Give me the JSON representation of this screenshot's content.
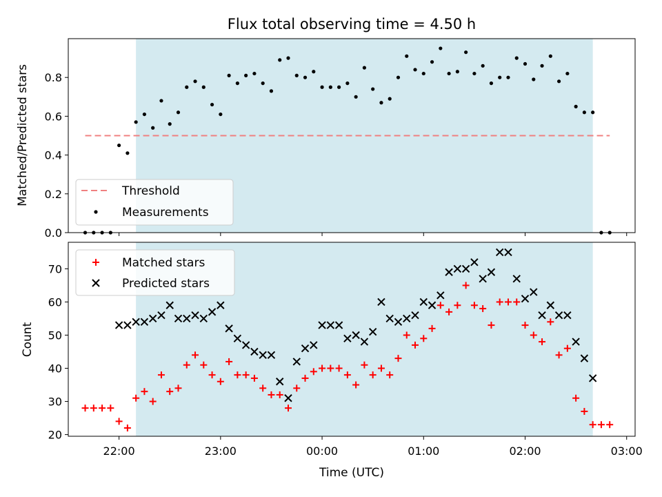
{
  "colors": {
    "background": "#ffffff",
    "shade": "#d4eaf0",
    "threshold": "#f08080",
    "measurement": "#000000",
    "matched": "#ff0000",
    "predicted": "#000000",
    "axis": "#000000"
  },
  "chart_data": [
    {
      "type": "scatter",
      "title": "Flux total observing time = 4.50 h",
      "xlabel": "",
      "ylabel": "Matched/Predicted stars",
      "xlim": [
        "21:30",
        "03:05"
      ],
      "ylim": [
        0,
        1.0
      ],
      "yticks": [
        "0.0",
        "0.2",
        "0.4",
        "0.6",
        "0.8"
      ],
      "ytick_values": [
        0,
        0.2,
        0.4,
        0.6,
        0.8
      ],
      "shaded_span": [
        "22:10",
        "02:40"
      ],
      "legend_position": "lower-left",
      "threshold": {
        "label": "Threshold",
        "value": 0.5,
        "x_range": [
          "21:40",
          "02:50"
        ]
      },
      "series": [
        {
          "name": "Measurements",
          "marker": "dot",
          "x": [
            "21:40",
            "21:45",
            "21:50",
            "21:55",
            "22:00",
            "22:05",
            "22:10",
            "22:15",
            "22:20",
            "22:25",
            "22:30",
            "22:35",
            "22:40",
            "22:45",
            "22:50",
            "22:55",
            "23:00",
            "23:05",
            "23:10",
            "23:15",
            "23:20",
            "23:25",
            "23:30",
            "23:35",
            "23:40",
            "23:45",
            "23:50",
            "23:55",
            "00:00",
            "00:05",
            "00:10",
            "00:15",
            "00:20",
            "00:25",
            "00:30",
            "00:35",
            "00:40",
            "00:45",
            "00:50",
            "00:55",
            "01:00",
            "01:05",
            "01:10",
            "01:15",
            "01:20",
            "01:25",
            "01:30",
            "01:35",
            "01:40",
            "01:45",
            "01:50",
            "01:55",
            "02:00",
            "02:05",
            "02:10",
            "02:15",
            "02:20",
            "02:25",
            "02:30",
            "02:35",
            "02:40",
            "02:45",
            "02:50"
          ],
          "y": [
            0,
            0,
            0,
            0,
            0.45,
            0.41,
            0.57,
            0.61,
            0.54,
            0.68,
            0.56,
            0.62,
            0.75,
            0.78,
            0.75,
            0.66,
            0.61,
            0.81,
            0.77,
            0.81,
            0.82,
            0.77,
            0.73,
            0.89,
            0.9,
            0.81,
            0.8,
            0.83,
            0.75,
            0.75,
            0.75,
            0.77,
            0.7,
            0.85,
            0.74,
            0.67,
            0.69,
            0.8,
            0.91,
            0.84,
            0.82,
            0.88,
            0.95,
            0.82,
            0.83,
            0.93,
            0.82,
            0.86,
            0.77,
            0.8,
            0.8,
            0.9,
            0.87,
            0.79,
            0.86,
            0.91,
            0.78,
            0.82,
            0.65,
            0.62,
            0.62,
            0,
            0
          ]
        }
      ]
    },
    {
      "type": "scatter",
      "title": "",
      "xlabel": "Time (UTC)",
      "ylabel": "Count",
      "xlim": [
        "21:30",
        "03:05"
      ],
      "ylim": [
        19.5,
        78
      ],
      "yticks": [
        "20",
        "30",
        "40",
        "50",
        "60",
        "70"
      ],
      "ytick_values": [
        20,
        30,
        40,
        50,
        60,
        70
      ],
      "xticks": [
        "22:00",
        "23:00",
        "00:00",
        "01:00",
        "02:00",
        "03:00"
      ],
      "shaded_span": [
        "22:10",
        "02:40"
      ],
      "legend_position": "upper-left",
      "series": [
        {
          "name": "Matched stars",
          "marker": "plus",
          "x": [
            "21:40",
            "21:45",
            "21:50",
            "21:55",
            "22:00",
            "22:05",
            "22:10",
            "22:15",
            "22:20",
            "22:25",
            "22:30",
            "22:35",
            "22:40",
            "22:45",
            "22:50",
            "22:55",
            "23:00",
            "23:05",
            "23:10",
            "23:15",
            "23:20",
            "23:25",
            "23:30",
            "23:35",
            "23:40",
            "23:45",
            "23:50",
            "23:55",
            "00:00",
            "00:05",
            "00:10",
            "00:15",
            "00:20",
            "00:25",
            "00:30",
            "00:35",
            "00:40",
            "00:45",
            "00:50",
            "00:55",
            "01:00",
            "01:05",
            "01:10",
            "01:15",
            "01:20",
            "01:25",
            "01:30",
            "01:35",
            "01:40",
            "01:45",
            "01:50",
            "01:55",
            "02:00",
            "02:05",
            "02:10",
            "02:15",
            "02:20",
            "02:25",
            "02:30",
            "02:35",
            "02:40",
            "02:45",
            "02:50"
          ],
          "y": [
            28,
            28,
            28,
            28,
            24,
            22,
            31,
            33,
            30,
            38,
            33,
            34,
            41,
            44,
            41,
            38,
            36,
            42,
            38,
            38,
            37,
            34,
            32,
            32,
            28,
            34,
            37,
            39,
            40,
            40,
            40,
            38,
            35,
            41,
            38,
            40,
            38,
            43,
            50,
            47,
            49,
            52,
            59,
            57,
            59,
            65,
            59,
            58,
            53,
            60,
            60,
            60,
            53,
            50,
            48,
            54,
            44,
            46,
            31,
            27,
            23,
            23,
            23
          ]
        },
        {
          "name": "Predicted stars",
          "marker": "x",
          "x": [
            "22:00",
            "22:05",
            "22:10",
            "22:15",
            "22:20",
            "22:25",
            "22:30",
            "22:35",
            "22:40",
            "22:45",
            "22:50",
            "22:55",
            "23:00",
            "23:05",
            "23:10",
            "23:15",
            "23:20",
            "23:25",
            "23:30",
            "23:35",
            "23:40",
            "23:45",
            "23:50",
            "23:55",
            "00:00",
            "00:05",
            "00:10",
            "00:15",
            "00:20",
            "00:25",
            "00:30",
            "00:35",
            "00:40",
            "00:45",
            "00:50",
            "00:55",
            "01:00",
            "01:05",
            "01:10",
            "01:15",
            "01:20",
            "01:25",
            "01:30",
            "01:35",
            "01:40",
            "01:45",
            "01:50",
            "01:55",
            "02:00",
            "02:05",
            "02:10",
            "02:15",
            "02:20",
            "02:25",
            "02:30",
            "02:35",
            "02:40"
          ],
          "y": [
            53,
            53,
            54,
            54,
            55,
            56,
            59,
            55,
            55,
            56,
            55,
            57,
            59,
            52,
            49,
            47,
            45,
            44,
            44,
            36,
            31,
            42,
            46,
            47,
            53,
            53,
            53,
            49,
            50,
            48,
            51,
            60,
            55,
            54,
            55,
            56,
            60,
            59,
            62,
            69,
            70,
            70,
            72,
            67,
            69,
            75,
            75,
            67,
            61,
            63,
            56,
            59,
            56,
            56,
            48,
            43,
            37
          ]
        }
      ]
    }
  ]
}
